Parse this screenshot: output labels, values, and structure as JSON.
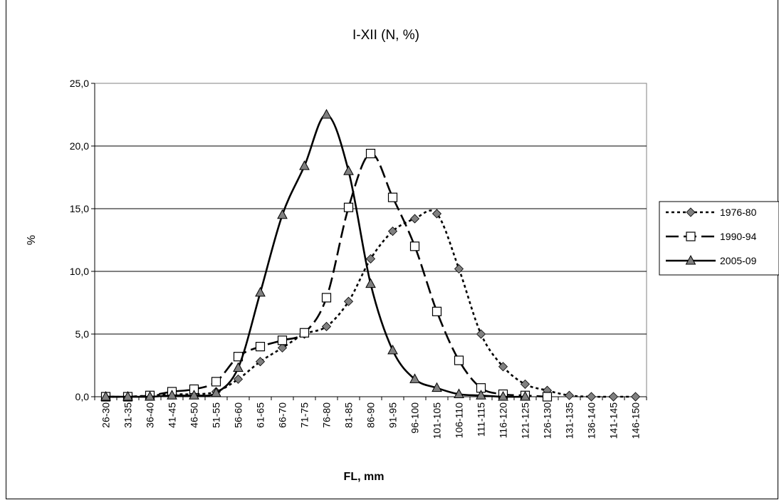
{
  "chart_data": {
    "type": "line",
    "title": "I-XII (N, %)",
    "xlabel": "FL, mm",
    "ylabel": "%",
    "ylim": [
      0,
      25
    ],
    "yticks": [
      "0,0",
      "5,0",
      "10,0",
      "15,0",
      "20,0",
      "25,0"
    ],
    "grid": "horizontal",
    "legend_position": "right",
    "categories": [
      "26-30",
      "31-35",
      "36-40",
      "41-45",
      "46-50",
      "51-55",
      "56-60",
      "61-65",
      "66-70",
      "71-75",
      "76-80",
      "81-85",
      "86-90",
      "91-95",
      "96-100",
      "101-105",
      "106-110",
      "111-115",
      "116-120",
      "121-125",
      "126-130",
      "131-135",
      "136-140",
      "141-145",
      "146-150"
    ],
    "series": [
      {
        "name": "1976-80",
        "line": "dotted",
        "marker": "diamond",
        "color": "#808080",
        "values": [
          0,
          0,
          0.1,
          0.2,
          0.2,
          0.4,
          1.4,
          2.8,
          3.9,
          5.0,
          5.6,
          7.6,
          11.0,
          13.2,
          14.2,
          14.6,
          10.2,
          5.0,
          2.4,
          1.0,
          0.5,
          0.1,
          0,
          0,
          0
        ]
      },
      {
        "name": "1990-94",
        "line": "dashed",
        "marker": "square",
        "color": "#ffffff",
        "values": [
          0,
          0,
          0.1,
          0.4,
          0.6,
          1.2,
          3.2,
          4.0,
          4.5,
          5.1,
          7.9,
          15.1,
          19.4,
          15.9,
          12.0,
          6.8,
          2.9,
          0.7,
          0.2,
          0.1,
          0,
          null,
          null,
          null,
          null
        ]
      },
      {
        "name": "2005-09",
        "line": "solid",
        "marker": "triangle",
        "color": "#808080",
        "values": [
          0,
          0,
          0,
          0.1,
          0.1,
          0.3,
          2.3,
          8.3,
          14.5,
          18.4,
          22.5,
          18.0,
          9.0,
          3.7,
          1.4,
          0.7,
          0.2,
          0.1,
          0,
          0,
          null,
          null,
          null,
          null,
          null
        ]
      }
    ]
  }
}
